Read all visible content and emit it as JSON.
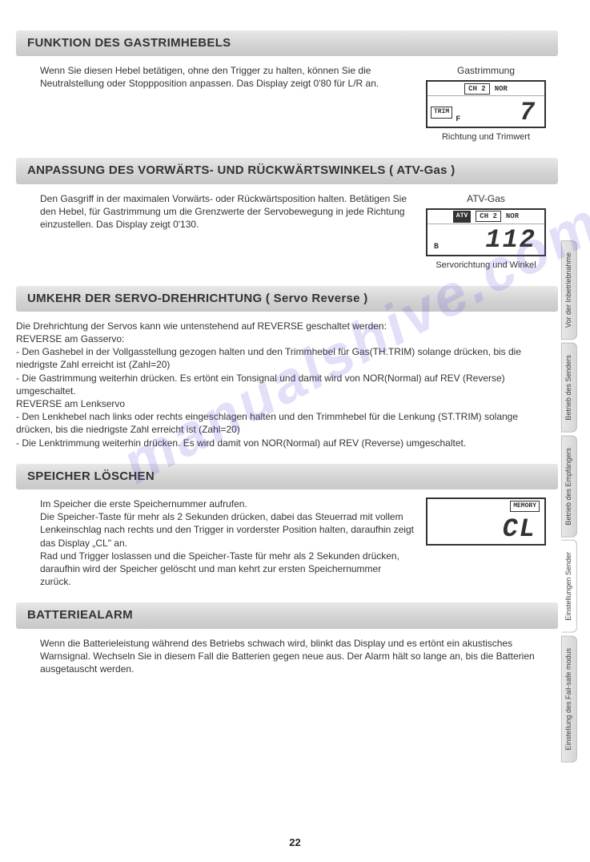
{
  "watermark": "manualshive.com",
  "page_number": "22",
  "sections": {
    "s1": {
      "title": "FUNKTION DES GASTRIMHEBELS",
      "text": "Wenn Sie diesen Hebel betätigen, ohne den Trigger zu halten, können Sie die Neutralstellung oder Stoppposition anpassen. Das Display zeigt 0'80 für L/R an.",
      "display_label": "Gastrimmung",
      "display_caption": "Richtung und Trimwert",
      "lcd": {
        "ch": "CH 2",
        "mode": "NOR",
        "label": "TRIM",
        "sub": "F",
        "value": "7"
      }
    },
    "s2": {
      "title": "ANPASSUNG DES VORWÄRTS- UND RÜCKWÄRTSWINKELS ( ATV-Gas )",
      "text": "Den Gasgriff in der maximalen Vorwärts- oder Rückwärtsposition halten. Betätigen Sie den Hebel, für Gastrimmung um die Grenzwerte der Servobewegung in jede Richtung einzustellen. Das Display zeigt 0'130.",
      "display_label": "ATV-Gas",
      "display_caption": "Servorichtung und Winkel",
      "lcd": {
        "ch": "CH 2",
        "mode": "NOR",
        "label": "ATV",
        "sub": "B",
        "value": "112"
      }
    },
    "s3": {
      "title": "UMKEHR DER SERVO-DREHRICHTUNG ( Servo Reverse )",
      "intro": "Die Drehrichtung der Servos kann wie untenstehend auf REVERSE geschaltet werden:",
      "l1": "REVERSE am Gasservo:",
      "l2": "- Den Gashebel in der Vollgasstellung gezogen halten und den Trimmhebel für Gas(TH.TRIM) solange drücken, bis die niedrigste Zahl erreicht ist (Zahl=20)",
      "l3": "- Die Gastrimmung weiterhin drücken. Es ertönt ein Tonsignal und damit wird von NOR(Normal) auf REV (Reverse) umgeschaltet.",
      "l4": "REVERSE am Lenkservo",
      "l5": "- Den Lenkhebel nach links oder rechts eingeschlagen halten und den Trimmhebel für die Lenkung (ST.TRIM) solange drücken, bis die niedrigste Zahl erreicht ist (Zahl=20)",
      "l6": "- Die Lenktrimmung weiterhin drücken. Es wird damit von NOR(Normal) auf REV (Reverse) umgeschaltet."
    },
    "s4": {
      "title": "SPEICHER LÖSCHEN",
      "text": "Im Speicher die erste Speichernummer aufrufen.\nDie Speicher-Taste für mehr als 2 Sekunden drücken, dabei das Steuerrad mit vollem Lenkeinschlag nach rechts und den Trigger in vorderster Position halten, daraufhin zeigt das Display „CL\" an.\nRad und Trigger loslassen und die Speicher-Taste für mehr als 2 Sekunden drücken, daraufhin wird der Speicher gelöscht und man kehrt zur ersten Speichernummer zurück.",
      "lcd": {
        "label": "MEMORY",
        "value": "CL"
      }
    },
    "s5": {
      "title": "BATTERIEALARM",
      "text": "Wenn die Batterieleistung während des Betriebs schwach wird, blinkt das Display und es ertönt ein akustisches Warnsignal. Wechseln Sie in diesem Fall die Batterien gegen neue aus. Der Alarm hält so lange an, bis die Batterien ausgetauscht werden."
    }
  },
  "tabs": {
    "t1": "Vor der Inbetriebnahme",
    "t2": "Betrieb des Senders",
    "t3": "Betrieb des Empfängers",
    "t4": "Einstellungen Sender",
    "t5": "Einstellung des Fail-safe modus"
  }
}
